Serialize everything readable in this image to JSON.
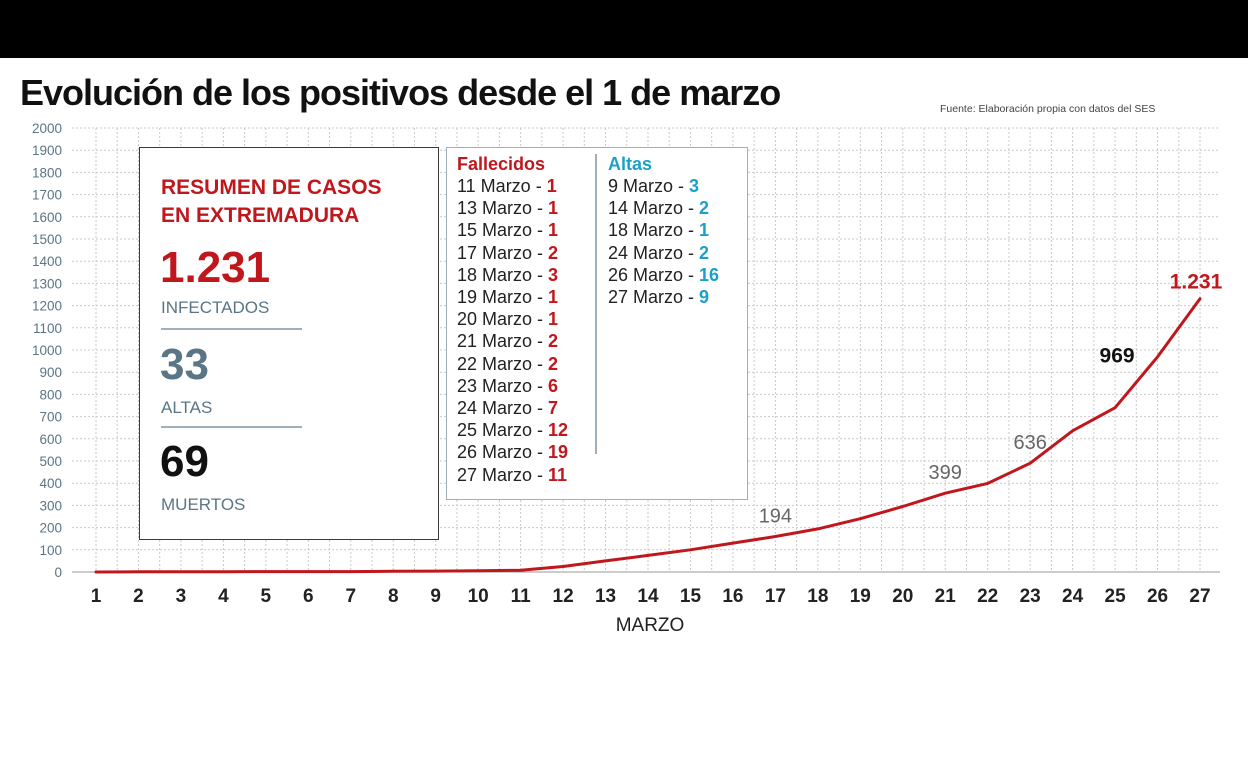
{
  "header": {
    "title": "Evolución de los positivos desde el 1 de marzo",
    "source": "Fuente: Elaboración propia con datos del SES"
  },
  "colors": {
    "line": "#c0171c",
    "red": "#c0171c",
    "blue": "#1ba1c9",
    "axis_text": "#5a7585",
    "grid": "#c9c9c9"
  },
  "summary": {
    "heading_line1": "RESUMEN DE CASOS",
    "heading_line2": "EN EXTREMADURA",
    "infectados_value": "1.231",
    "infectados_label": "INFECTADOS",
    "altas_value": "33",
    "altas_label": "ALTAS",
    "muertos_value": "69",
    "muertos_label": "MUERTOS"
  },
  "fallecidos": {
    "title": "Fallecidos",
    "rows": [
      {
        "date": "11 Marzo - ",
        "count": "1"
      },
      {
        "date": "13 Marzo - ",
        "count": "1"
      },
      {
        "date": "15 Marzo - ",
        "count": "1"
      },
      {
        "date": "17 Marzo - ",
        "count": "2"
      },
      {
        "date": "18 Marzo - ",
        "count": "3"
      },
      {
        "date": "19 Marzo - ",
        "count": "1"
      },
      {
        "date": "20 Marzo - ",
        "count": "1"
      },
      {
        "date": "21 Marzo - ",
        "count": "2"
      },
      {
        "date": "22 Marzo - ",
        "count": "2"
      },
      {
        "date": "23 Marzo - ",
        "count": "6"
      },
      {
        "date": "24 Marzo - ",
        "count": "7"
      },
      {
        "date": "25 Marzo - ",
        "count": "12"
      },
      {
        "date": "26 Marzo - ",
        "count": "19"
      },
      {
        "date": "27 Marzo - ",
        "count": "11"
      }
    ]
  },
  "altas": {
    "title": "Altas",
    "rows": [
      {
        "date": "9 Marzo - ",
        "count": "3"
      },
      {
        "date": "14 Marzo - ",
        "count": "2"
      },
      {
        "date": "18 Marzo - ",
        "count": "1"
      },
      {
        "date": "24 Marzo - ",
        "count": "2"
      },
      {
        "date": "26 Marzo - ",
        "count": "16"
      },
      {
        "date": "27 Marzo - ",
        "count": "9"
      }
    ]
  },
  "chart_data": {
    "type": "line",
    "title": "Evolución de los positivos desde el 1 de marzo",
    "xlabel": "MARZO",
    "ylabel": "",
    "ylim": [
      0,
      2000
    ],
    "yticks": [
      "0",
      "100",
      "200",
      "300",
      "400",
      "500",
      "600",
      "700",
      "800",
      "900",
      "1000",
      "1100",
      "1200",
      "1300",
      "1400",
      "1500",
      "1600",
      "1700",
      "1800",
      "1900",
      "2000"
    ],
    "categories": [
      "1",
      "2",
      "3",
      "4",
      "5",
      "6",
      "7",
      "8",
      "9",
      "10",
      "11",
      "12",
      "13",
      "14",
      "15",
      "16",
      "17",
      "18",
      "19",
      "20",
      "21",
      "22",
      "23",
      "24",
      "25",
      "26",
      "27"
    ],
    "series": [
      {
        "values": [
          0,
          1,
          1,
          1,
          2,
          2,
          2,
          3,
          4,
          6,
          8,
          25,
          50,
          75,
          100,
          130,
          160,
          194,
          240,
          295,
          355,
          399,
          490,
          636,
          740,
          969,
          1231
        ]
      }
    ],
    "annotations": [
      {
        "category": "17",
        "text": "194",
        "style": "gray"
      },
      {
        "category": "21",
        "text": "399",
        "style": "gray"
      },
      {
        "category": "23",
        "text": "636",
        "style": "gray"
      },
      {
        "category": "25",
        "text": "969",
        "style": "bold"
      },
      {
        "category": "27",
        "text": "1.231",
        "style": "red"
      }
    ],
    "grid": true,
    "legend": "none"
  }
}
